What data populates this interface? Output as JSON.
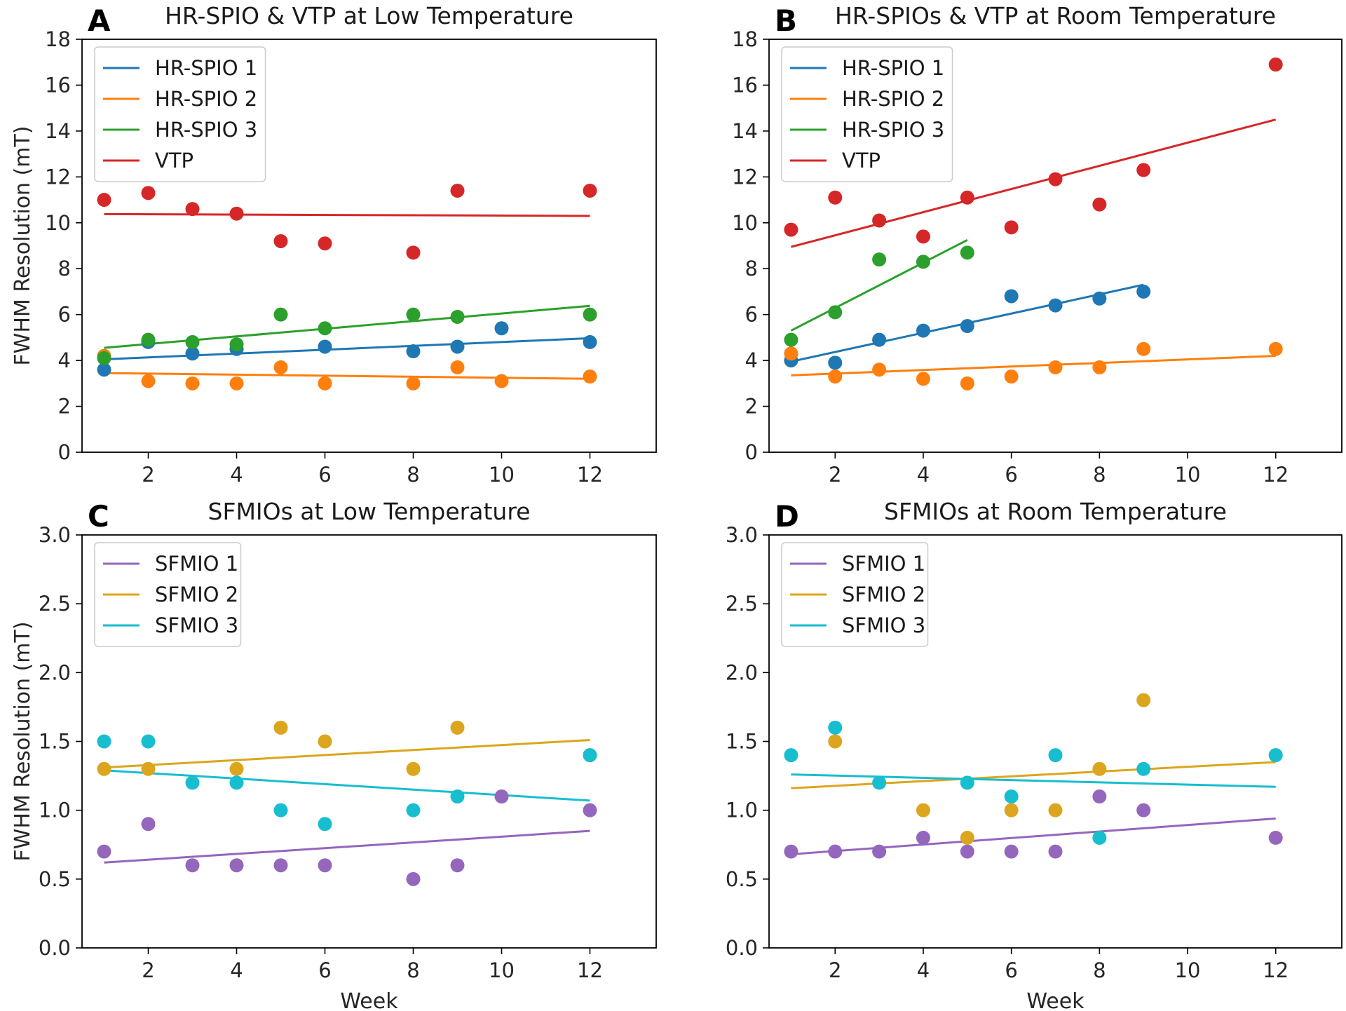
{
  "colors": {
    "blue": "#1f77b4",
    "orange": "#ff7f0e",
    "green": "#2ca02c",
    "red": "#d62728",
    "purple": "#9467bd",
    "gold": "#dba61d",
    "cyan": "#17becf"
  },
  "chart_data": [
    {
      "type": "scatter",
      "letter": "A",
      "title": "HR-SPIO & VTP at Low Temperature",
      "xlabel": "",
      "ylabel": "FWHM Resolution (mT)",
      "xlim": [
        0.5,
        13.5
      ],
      "ylim": [
        0,
        18
      ],
      "xticks": [
        2,
        4,
        6,
        8,
        10,
        12
      ],
      "yticks": [
        0,
        2,
        4,
        6,
        8,
        10,
        12,
        14,
        16,
        18
      ],
      "legend": "top-left",
      "series": [
        {
          "name": "HR-SPIO 1",
          "color": "#1f77b4",
          "x": [
            1,
            2,
            3,
            4,
            6,
            8,
            9,
            10,
            12
          ],
          "y": [
            3.6,
            4.8,
            4.3,
            4.5,
            4.6,
            4.4,
            4.6,
            5.4,
            4.8
          ],
          "fit": [
            [
              1,
              4.05
            ],
            [
              12,
              4.97
            ]
          ]
        },
        {
          "name": "HR-SPIO 2",
          "color": "#ff7f0e",
          "x": [
            1,
            2,
            3,
            4,
            5,
            6,
            8,
            9,
            10,
            12
          ],
          "y": [
            4.2,
            3.1,
            3.0,
            3.0,
            3.7,
            3.0,
            3.0,
            3.7,
            3.1,
            3.3
          ],
          "fit": [
            [
              1,
              3.45
            ],
            [
              12,
              3.2
            ]
          ]
        },
        {
          "name": "HR-SPIO 3",
          "color": "#2ca02c",
          "x": [
            1,
            2,
            3,
            4,
            5,
            6,
            8,
            9,
            12
          ],
          "y": [
            4.1,
            4.9,
            4.8,
            4.7,
            6.0,
            5.4,
            6.0,
            5.9,
            6.0
          ],
          "fit": [
            [
              1,
              4.55
            ],
            [
              12,
              6.38
            ]
          ]
        },
        {
          "name": "VTP",
          "color": "#d62728",
          "x": [
            1,
            2,
            3,
            4,
            5,
            6,
            8,
            9,
            12
          ],
          "y": [
            11.0,
            11.3,
            10.6,
            10.4,
            9.2,
            9.1,
            8.7,
            11.4,
            11.4
          ],
          "fit": [
            [
              1,
              10.38
            ],
            [
              12,
              10.3
            ]
          ]
        }
      ]
    },
    {
      "type": "scatter",
      "letter": "B",
      "title": "HR-SPIOs & VTP at Room Temperature",
      "xlabel": "",
      "ylabel": "",
      "xlim": [
        0.5,
        13.5
      ],
      "ylim": [
        0,
        18
      ],
      "xticks": [
        2,
        4,
        6,
        8,
        10,
        12
      ],
      "yticks": [
        0,
        2,
        4,
        6,
        8,
        10,
        12,
        14,
        16,
        18
      ],
      "legend": "top-left",
      "series": [
        {
          "name": "HR-SPIO 1",
          "color": "#1f77b4",
          "x": [
            1,
            2,
            3,
            4,
            5,
            6,
            7,
            8,
            9
          ],
          "y": [
            4.0,
            3.9,
            4.9,
            5.3,
            5.5,
            6.8,
            6.4,
            6.7,
            7.0
          ],
          "fit": [
            [
              1,
              3.95
            ],
            [
              9,
              7.3
            ]
          ]
        },
        {
          "name": "HR-SPIO 2",
          "color": "#ff7f0e",
          "x": [
            1,
            2,
            3,
            4,
            5,
            6,
            7,
            8,
            9,
            12
          ],
          "y": [
            4.3,
            3.3,
            3.6,
            3.2,
            3.0,
            3.3,
            3.7,
            3.7,
            4.5,
            4.5
          ],
          "fit": [
            [
              1,
              3.35
            ],
            [
              12,
              4.2
            ]
          ]
        },
        {
          "name": "HR-SPIO 3",
          "color": "#2ca02c",
          "x": [
            1,
            2,
            3,
            4,
            5
          ],
          "y": [
            4.9,
            6.1,
            8.4,
            8.3,
            8.7
          ],
          "fit": [
            [
              1,
              5.3
            ],
            [
              5,
              9.25
            ]
          ]
        },
        {
          "name": "VTP",
          "color": "#d62728",
          "x": [
            1,
            2,
            3,
            4,
            5,
            6,
            7,
            8,
            9,
            12
          ],
          "y": [
            9.7,
            11.1,
            10.1,
            9.4,
            11.1,
            9.8,
            11.9,
            10.8,
            12.3,
            16.9
          ],
          "fit": [
            [
              1,
              8.95
            ],
            [
              12,
              14.5
            ]
          ]
        }
      ]
    },
    {
      "type": "scatter",
      "letter": "C",
      "title": "SFMIOs at Low Temperature",
      "xlabel": "Week",
      "ylabel": "FWHM Resolution (mT)",
      "xlim": [
        0.5,
        13.5
      ],
      "ylim": [
        0,
        3
      ],
      "xticks": [
        2,
        4,
        6,
        8,
        10,
        12
      ],
      "yticks": [
        0.0,
        0.5,
        1.0,
        1.5,
        2.0,
        2.5,
        3.0
      ],
      "legend": "top-left",
      "series": [
        {
          "name": "SFMIO 1",
          "color": "#9467bd",
          "x": [
            1,
            2,
            3,
            4,
            5,
            6,
            8,
            9,
            10,
            12
          ],
          "y": [
            0.7,
            0.9,
            0.6,
            0.6,
            0.6,
            0.6,
            0.5,
            0.6,
            1.1,
            1.0
          ],
          "fit": [
            [
              1,
              0.62
            ],
            [
              12,
              0.85
            ]
          ]
        },
        {
          "name": "SFMIO 2",
          "color": "#dba61d",
          "x": [
            1,
            2,
            4,
            5,
            6,
            8,
            9,
            12
          ],
          "y": [
            1.3,
            1.3,
            1.3,
            1.6,
            1.5,
            1.3,
            1.6,
            1.4
          ],
          "fit": [
            [
              1,
              1.31
            ],
            [
              12,
              1.51
            ]
          ]
        },
        {
          "name": "SFMIO 3",
          "color": "#17becf",
          "x": [
            1,
            2,
            3,
            4,
            5,
            6,
            8,
            9,
            12
          ],
          "y": [
            1.5,
            1.5,
            1.2,
            1.2,
            1.0,
            0.9,
            1.0,
            1.1,
            1.4
          ],
          "fit": [
            [
              1,
              1.29
            ],
            [
              12,
              1.07
            ]
          ]
        }
      ]
    },
    {
      "type": "scatter",
      "letter": "D",
      "title": "SFMIOs at Room Temperature",
      "xlabel": "Week",
      "ylabel": "",
      "xlim": [
        0.5,
        13.5
      ],
      "ylim": [
        0,
        3
      ],
      "xticks": [
        2,
        4,
        6,
        8,
        10,
        12
      ],
      "yticks": [
        0.0,
        0.5,
        1.0,
        1.5,
        2.0,
        2.5,
        3.0
      ],
      "legend": "top-left",
      "series": [
        {
          "name": "SFMIO 1",
          "color": "#9467bd",
          "x": [
            1,
            2,
            3,
            4,
            5,
            6,
            7,
            8,
            9,
            12
          ],
          "y": [
            0.7,
            0.7,
            0.7,
            0.8,
            0.7,
            0.7,
            0.7,
            1.1,
            1.0,
            0.8
          ],
          "fit": [
            [
              1,
              0.68
            ],
            [
              12,
              0.94
            ]
          ]
        },
        {
          "name": "SFMIO 2",
          "color": "#dba61d",
          "x": [
            2,
            4,
            5,
            6,
            7,
            8,
            9,
            12
          ],
          "y": [
            1.5,
            1.0,
            0.8,
            1.0,
            1.0,
            1.3,
            1.8,
            1.4
          ],
          "fit": [
            [
              1,
              1.16
            ],
            [
              12,
              1.35
            ]
          ]
        },
        {
          "name": "SFMIO 3",
          "color": "#17becf",
          "x": [
            1,
            2,
            3,
            5,
            6,
            7,
            8,
            9,
            12
          ],
          "y": [
            1.4,
            1.6,
            1.2,
            1.2,
            1.1,
            1.4,
            0.8,
            1.3,
            1.4
          ],
          "fit": [
            [
              1,
              1.26
            ],
            [
              12,
              1.17
            ]
          ]
        }
      ]
    }
  ]
}
